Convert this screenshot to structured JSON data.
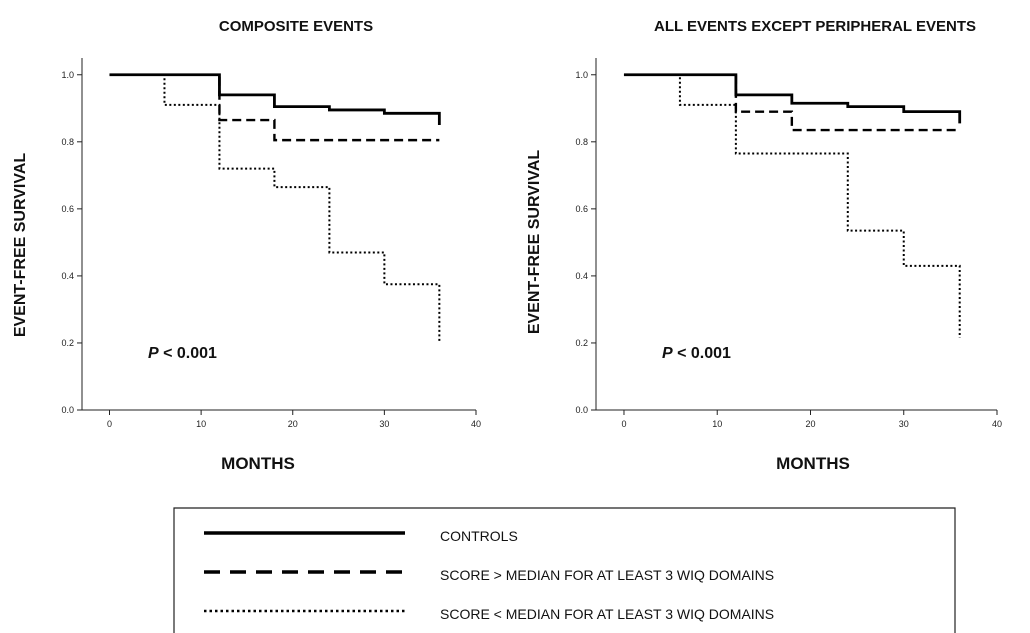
{
  "chart_data": [
    {
      "type": "line",
      "title": "COMPOSITE EVENTS",
      "xlabel": "MONTHS",
      "ylabel": "EVENT-FREE SURVIVAL",
      "xlim": [
        -3,
        40
      ],
      "ylim": [
        0.0,
        1.05
      ],
      "xticks": [
        0,
        10,
        20,
        30,
        40
      ],
      "yticks": [
        0.0,
        0.2,
        0.4,
        0.6,
        0.8,
        1.0
      ],
      "xtick_labels": [
        "0",
        "10",
        "20",
        "30",
        "40"
      ],
      "ytick_labels": [
        "0.0",
        "0.2",
        "0.4",
        "0.6",
        "0.8",
        "1.0"
      ],
      "annotation": {
        "italic": "P",
        "text": " < 0.001"
      },
      "series": [
        {
          "name": "CONTROLS",
          "style": "solid",
          "x": [
            0,
            12,
            18,
            24,
            30,
            36
          ],
          "y": [
            1.0,
            0.94,
            0.905,
            0.895,
            0.885,
            0.85
          ]
        },
        {
          "name": "SCORE > MEDIAN FOR AT LEAST 3 WIQ DOMAINS",
          "style": "dashed",
          "x": [
            0,
            12,
            18,
            36
          ],
          "y": [
            1.0,
            0.865,
            0.805,
            0.805
          ]
        },
        {
          "name": "SCORE < MEDIAN FOR AT LEAST 3 WIQ DOMAINS",
          "style": "dotted",
          "x": [
            0,
            6,
            12,
            18,
            24,
            30,
            36
          ],
          "y": [
            1.0,
            0.91,
            0.72,
            0.665,
            0.47,
            0.375,
            0.2
          ]
        }
      ]
    },
    {
      "type": "line",
      "title": "ALL EVENTS EXCEPT PERIPHERAL EVENTS",
      "xlabel": "MONTHS",
      "ylabel": "EVENT-FREE SURVIVAL",
      "xlim": [
        -3,
        40
      ],
      "ylim": [
        0.0,
        1.05
      ],
      "xticks": [
        0,
        10,
        20,
        30,
        40
      ],
      "yticks": [
        0.0,
        0.2,
        0.4,
        0.6,
        0.8,
        1.0
      ],
      "xtick_labels": [
        "0",
        "10",
        "20",
        "30",
        "40"
      ],
      "ytick_labels": [
        "0.0",
        "0.2",
        "0.4",
        "0.6",
        "0.8",
        "1.0"
      ],
      "annotation": {
        "italic": "P",
        "text": " < 0.001"
      },
      "series": [
        {
          "name": "CONTROLS",
          "style": "solid",
          "x": [
            0,
            12,
            18,
            24,
            30,
            36
          ],
          "y": [
            1.0,
            0.94,
            0.915,
            0.905,
            0.89,
            0.855
          ]
        },
        {
          "name": "SCORE > MEDIAN FOR AT LEAST 3 WIQ DOMAINS",
          "style": "dashed",
          "x": [
            0,
            12,
            18,
            36
          ],
          "y": [
            1.0,
            0.89,
            0.835,
            0.835
          ]
        },
        {
          "name": "SCORE < MEDIAN FOR AT LEAST 3 WIQ DOMAINS",
          "style": "dotted",
          "x": [
            0,
            6,
            12,
            24,
            30,
            36
          ],
          "y": [
            1.0,
            0.91,
            0.765,
            0.535,
            0.43,
            0.215
          ]
        }
      ]
    }
  ],
  "legend": {
    "items": [
      {
        "label": "CONTROLS",
        "style": "solid"
      },
      {
        "label": "SCORE > MEDIAN FOR AT LEAST 3 WIQ DOMAINS",
        "style": "dashed"
      },
      {
        "label": "SCORE < MEDIAN FOR AT LEAST 3 WIQ DOMAINS",
        "style": "dotted"
      }
    ]
  }
}
